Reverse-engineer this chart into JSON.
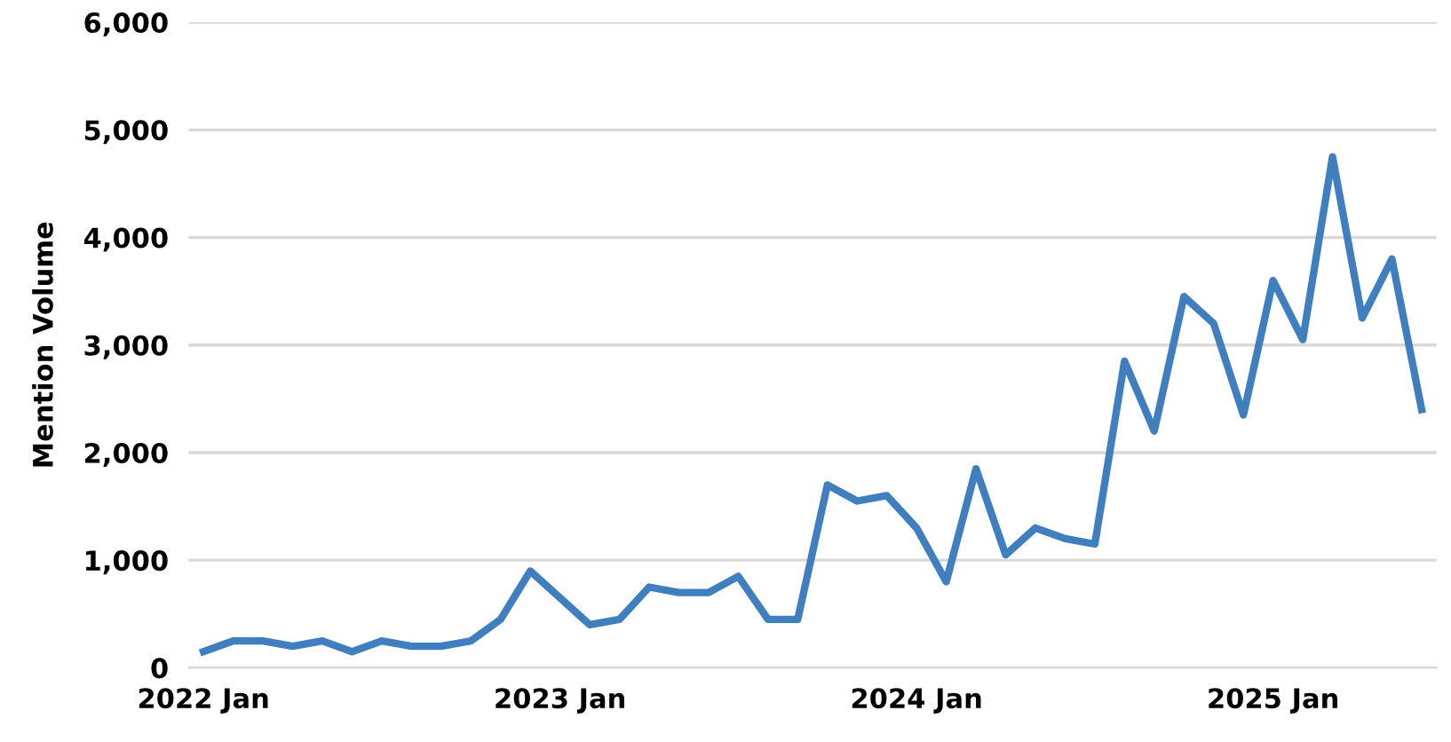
{
  "chart_data": {
    "type": "line",
    "ylabel": "Mention Volume",
    "categories": [
      "2022 Jan",
      null,
      null,
      null,
      null,
      null,
      null,
      null,
      null,
      null,
      null,
      null,
      "2023 Jan",
      null,
      null,
      null,
      null,
      null,
      null,
      null,
      null,
      null,
      null,
      null,
      "2024 Jan",
      null,
      null,
      null,
      null,
      null,
      null,
      null,
      null,
      null,
      null,
      null,
      "2025 Jan",
      null,
      null,
      null,
      null,
      null
    ],
    "series": [
      {
        "color": "#3f7fbf",
        "values": [
          150,
          250,
          250,
          200,
          250,
          150,
          250,
          200,
          200,
          250,
          450,
          900,
          650,
          400,
          450,
          750,
          700,
          700,
          850,
          450,
          450,
          1700,
          1550,
          1600,
          1300,
          800,
          1850,
          1050,
          1300,
          1200,
          1150,
          2850,
          2200,
          3450,
          3200,
          2350,
          3600,
          3050,
          4750,
          3250,
          3800,
          2400
        ]
      }
    ],
    "ylim": [
      0,
      6000
    ],
    "yticks": [
      {
        "value": 0,
        "label": "0"
      },
      {
        "value": 1000,
        "label": "1,000"
      },
      {
        "value": 2000,
        "label": "2,000"
      },
      {
        "value": 3000,
        "label": "3,000"
      },
      {
        "value": 4000,
        "label": "4,000"
      },
      {
        "value": 5000,
        "label": "5,000"
      },
      {
        "value": 6000,
        "label": "6,000"
      }
    ],
    "grid": "y",
    "legend": false,
    "marker": "none",
    "line_style": "solid"
  }
}
